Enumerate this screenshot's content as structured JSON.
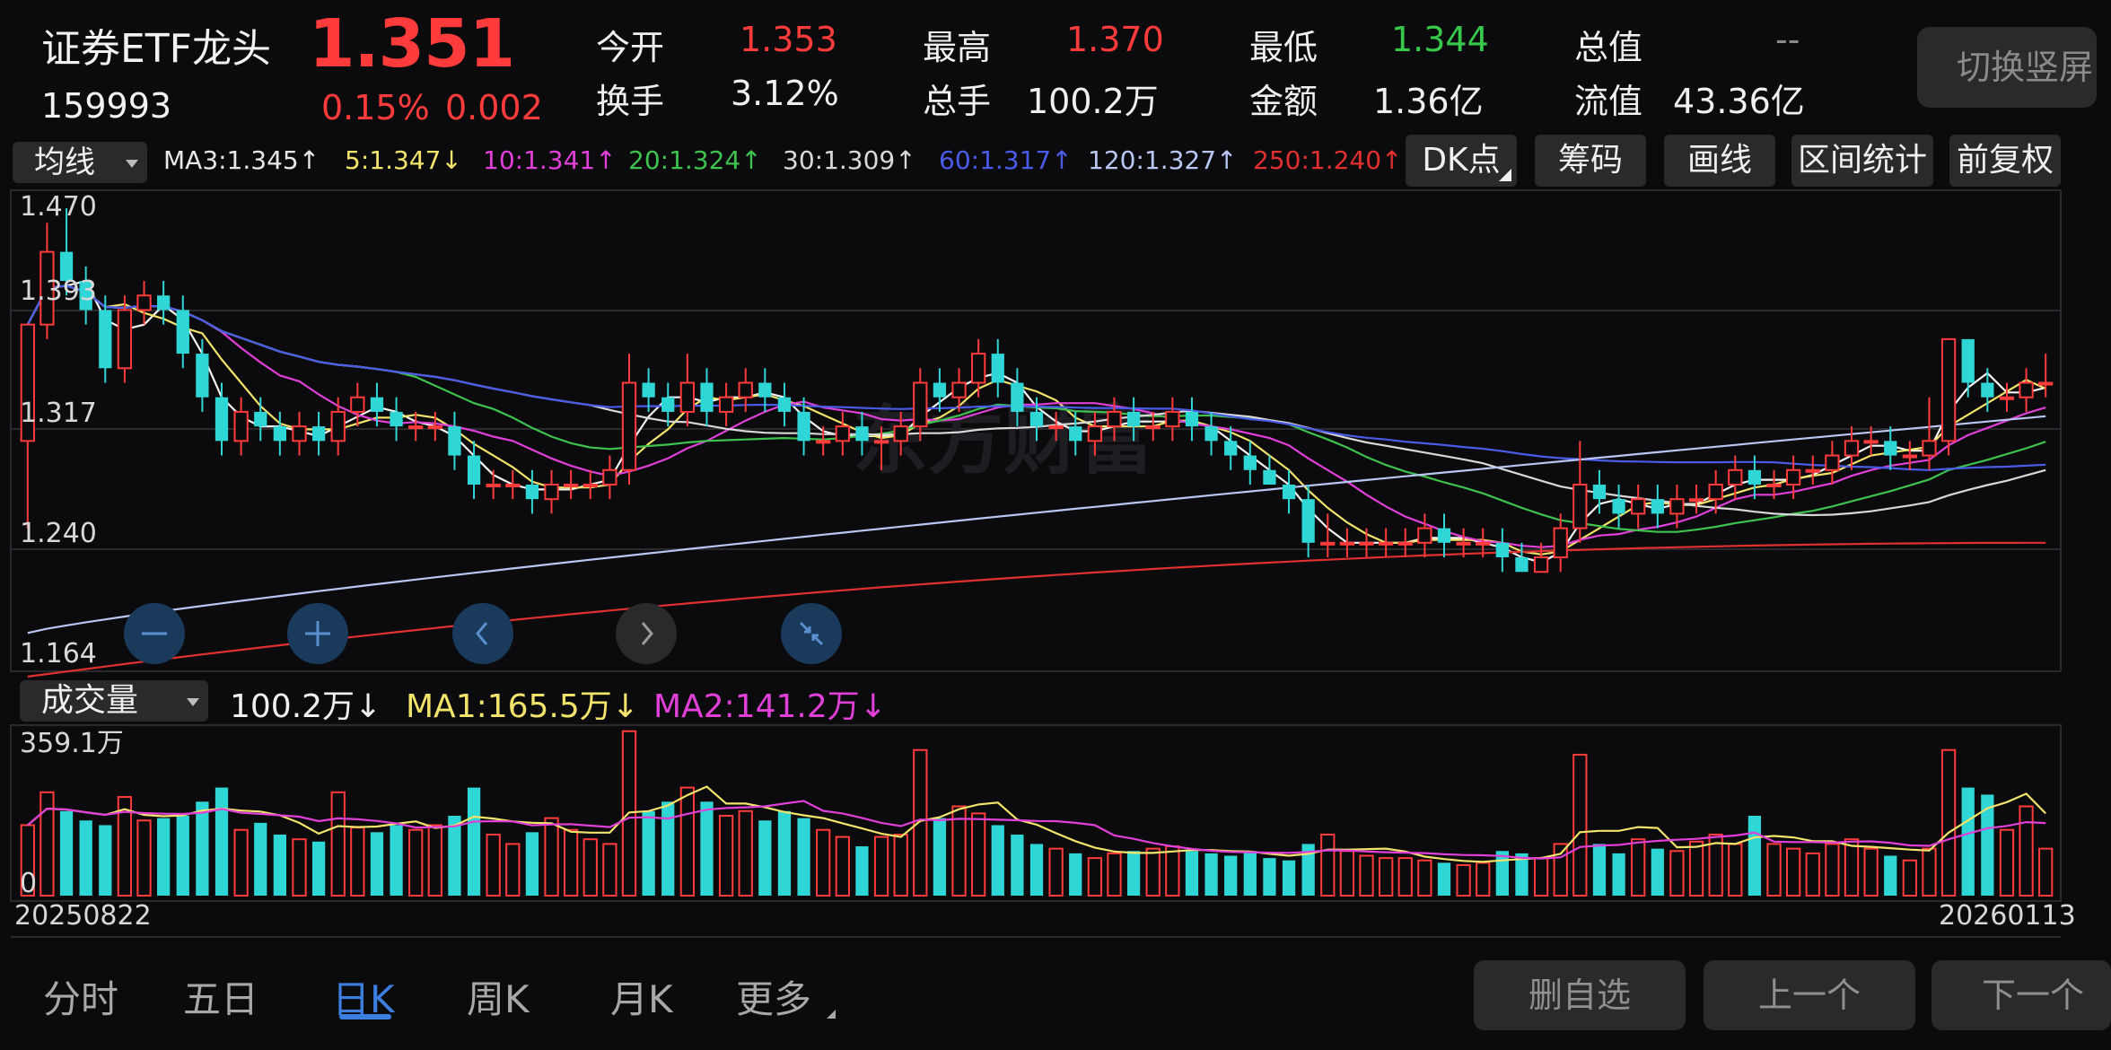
{
  "header": {
    "name": "证券ETF龙头",
    "price": "1.351",
    "code": "159993",
    "change_pct": "0.15%",
    "change_abs": "0.002",
    "stats": [
      {
        "label": "今开",
        "value": "1.353",
        "color": "red"
      },
      {
        "label": "最高",
        "value": "1.370",
        "color": "red"
      },
      {
        "label": "最低",
        "value": "1.344",
        "color": "green"
      },
      {
        "label": "总值",
        "value": "--",
        "color": "gray"
      },
      {
        "label": "换手",
        "value": "3.12%",
        "color": "white"
      },
      {
        "label": "总手",
        "value": "100.2万",
        "color": "white"
      },
      {
        "label": "金额",
        "value": "1.36亿",
        "color": "white"
      },
      {
        "label": "流值",
        "value": "43.36亿",
        "color": "white"
      }
    ],
    "switch_label": "切换竖屏"
  },
  "indicator_bar": {
    "selector_label": "均线",
    "ma_items": [
      {
        "text": "MA3:1.345↑",
        "color": "#e8e8e8"
      },
      {
        "text": "5:1.347↓",
        "color": "#f2e36b"
      },
      {
        "text": "10:1.341↑",
        "color": "#e040d8"
      },
      {
        "text": "20:1.324↑",
        "color": "#3ec24e"
      },
      {
        "text": "30:1.309↑",
        "color": "#d8d8d8"
      },
      {
        "text": "60:1.317↑",
        "color": "#4a5be8"
      },
      {
        "text": "120:1.327↑",
        "color": "#b9c6f2"
      },
      {
        "text": "250:1.240↑",
        "color": "#e03030"
      }
    ],
    "tools": [
      "DK点",
      "筹码",
      "画线",
      "区间统计",
      "前复权"
    ]
  },
  "price_axis": [
    "1.470",
    "1.393",
    "1.317",
    "1.240",
    "1.164"
  ],
  "volume_bar": {
    "selector_label": "成交量",
    "items": [
      {
        "text": "100.2万↓",
        "color": "#f0f0f0"
      },
      {
        "text": "MA1:165.5万↓",
        "color": "#f2e36b"
      },
      {
        "text": "MA2:141.2万↓",
        "color": "#e040d8"
      }
    ]
  },
  "volume_axis": {
    "top": "359.1万",
    "bottom": "0"
  },
  "date_axis": {
    "start": "20250822",
    "end": "20260113"
  },
  "nav_tabs": [
    {
      "label": "分时",
      "active": false
    },
    {
      "label": "五日",
      "active": false
    },
    {
      "label": "日K",
      "active": true
    },
    {
      "label": "周K",
      "active": false
    },
    {
      "label": "月K",
      "active": false
    },
    {
      "label": "更多",
      "active": false
    }
  ],
  "bottom_buttons": [
    "删自选",
    "上一个",
    "下一个"
  ],
  "chart_data": {
    "type": "candlestick",
    "ylim": [
      1.164,
      1.47
    ],
    "volume_ylim": [
      0,
      359.1
    ],
    "volume_unit": "万",
    "up_color": "#ff3b3b",
    "down_color": "#2fd6d6",
    "candles": [
      [
        1.31,
        1.39,
        1.25,
        1.39,
        150
      ],
      [
        1.39,
        1.44,
        1.38,
        1.46,
        220
      ],
      [
        1.44,
        1.42,
        1.41,
        1.47,
        180
      ],
      [
        1.42,
        1.4,
        1.39,
        1.43,
        160
      ],
      [
        1.4,
        1.36,
        1.35,
        1.41,
        150
      ],
      [
        1.36,
        1.4,
        1.35,
        1.41,
        210
      ],
      [
        1.4,
        1.41,
        1.39,
        1.42,
        160
      ],
      [
        1.41,
        1.4,
        1.39,
        1.42,
        165
      ],
      [
        1.4,
        1.37,
        1.36,
        1.41,
        170
      ],
      [
        1.37,
        1.34,
        1.33,
        1.38,
        200
      ],
      [
        1.34,
        1.31,
        1.3,
        1.35,
        230
      ],
      [
        1.31,
        1.33,
        1.3,
        1.34,
        140
      ],
      [
        1.33,
        1.32,
        1.31,
        1.34,
        155
      ],
      [
        1.32,
        1.31,
        1.3,
        1.33,
        130
      ],
      [
        1.31,
        1.32,
        1.3,
        1.33,
        120
      ],
      [
        1.32,
        1.31,
        1.3,
        1.33,
        115
      ],
      [
        1.31,
        1.33,
        1.3,
        1.34,
        220
      ],
      [
        1.33,
        1.34,
        1.32,
        1.35,
        145
      ],
      [
        1.34,
        1.33,
        1.32,
        1.35,
        135
      ],
      [
        1.33,
        1.32,
        1.31,
        1.34,
        150
      ],
      [
        1.32,
        1.32,
        1.31,
        1.33,
        140
      ],
      [
        1.32,
        1.32,
        1.31,
        1.33,
        150
      ],
      [
        1.32,
        1.3,
        1.29,
        1.33,
        170
      ],
      [
        1.3,
        1.28,
        1.27,
        1.31,
        230
      ],
      [
        1.28,
        1.28,
        1.27,
        1.29,
        130
      ],
      [
        1.28,
        1.28,
        1.27,
        1.29,
        110
      ],
      [
        1.28,
        1.27,
        1.26,
        1.29,
        135
      ],
      [
        1.27,
        1.28,
        1.26,
        1.29,
        165
      ],
      [
        1.28,
        1.28,
        1.27,
        1.29,
        140
      ],
      [
        1.28,
        1.28,
        1.27,
        1.29,
        120
      ],
      [
        1.28,
        1.29,
        1.27,
        1.3,
        110
      ],
      [
        1.29,
        1.35,
        1.28,
        1.37,
        350
      ],
      [
        1.35,
        1.34,
        1.33,
        1.36,
        180
      ],
      [
        1.34,
        1.33,
        1.32,
        1.35,
        200
      ],
      [
        1.33,
        1.35,
        1.32,
        1.37,
        230
      ],
      [
        1.35,
        1.33,
        1.32,
        1.36,
        200
      ],
      [
        1.33,
        1.34,
        1.32,
        1.35,
        170
      ],
      [
        1.34,
        1.35,
        1.33,
        1.36,
        180
      ],
      [
        1.35,
        1.34,
        1.33,
        1.36,
        160
      ],
      [
        1.34,
        1.33,
        1.32,
        1.35,
        180
      ],
      [
        1.33,
        1.31,
        1.3,
        1.34,
        165
      ],
      [
        1.31,
        1.31,
        1.3,
        1.32,
        140
      ],
      [
        1.31,
        1.32,
        1.3,
        1.33,
        125
      ],
      [
        1.32,
        1.31,
        1.3,
        1.33,
        105
      ],
      [
        1.31,
        1.31,
        1.29,
        1.32,
        125
      ],
      [
        1.31,
        1.32,
        1.3,
        1.33,
        130
      ],
      [
        1.32,
        1.35,
        1.31,
        1.36,
        310
      ],
      [
        1.35,
        1.34,
        1.33,
        1.36,
        165
      ],
      [
        1.34,
        1.35,
        1.33,
        1.36,
        190
      ],
      [
        1.35,
        1.37,
        1.34,
        1.38,
        175
      ],
      [
        1.37,
        1.35,
        1.34,
        1.38,
        150
      ],
      [
        1.35,
        1.33,
        1.32,
        1.36,
        130
      ],
      [
        1.33,
        1.32,
        1.31,
        1.34,
        110
      ],
      [
        1.32,
        1.32,
        1.31,
        1.33,
        100
      ],
      [
        1.32,
        1.31,
        1.3,
        1.33,
        90
      ],
      [
        1.31,
        1.32,
        1.3,
        1.33,
        80
      ],
      [
        1.32,
        1.33,
        1.31,
        1.34,
        90
      ],
      [
        1.33,
        1.32,
        1.31,
        1.34,
        95
      ],
      [
        1.32,
        1.32,
        1.31,
        1.33,
        100
      ],
      [
        1.32,
        1.33,
        1.31,
        1.34,
        105
      ],
      [
        1.33,
        1.32,
        1.31,
        1.34,
        95
      ],
      [
        1.32,
        1.31,
        1.3,
        1.33,
        90
      ],
      [
        1.31,
        1.3,
        1.29,
        1.32,
        85
      ],
      [
        1.3,
        1.29,
        1.28,
        1.31,
        95
      ],
      [
        1.29,
        1.28,
        1.28,
        1.3,
        80
      ],
      [
        1.28,
        1.27,
        1.26,
        1.29,
        75
      ],
      [
        1.27,
        1.24,
        1.23,
        1.28,
        110
      ],
      [
        1.24,
        1.24,
        1.23,
        1.26,
        130
      ],
      [
        1.24,
        1.24,
        1.23,
        1.25,
        95
      ],
      [
        1.24,
        1.24,
        1.23,
        1.25,
        85
      ],
      [
        1.24,
        1.24,
        1.23,
        1.25,
        80
      ],
      [
        1.24,
        1.24,
        1.23,
        1.25,
        80
      ],
      [
        1.24,
        1.25,
        1.23,
        1.26,
        75
      ],
      [
        1.25,
        1.24,
        1.23,
        1.26,
        70
      ],
      [
        1.24,
        1.24,
        1.23,
        1.25,
        65
      ],
      [
        1.24,
        1.24,
        1.23,
        1.25,
        70
      ],
      [
        1.24,
        1.23,
        1.22,
        1.25,
        95
      ],
      [
        1.23,
        1.22,
        1.22,
        1.24,
        90
      ],
      [
        1.22,
        1.23,
        1.22,
        1.24,
        80
      ],
      [
        1.23,
        1.25,
        1.22,
        1.26,
        110
      ],
      [
        1.25,
        1.28,
        1.24,
        1.31,
        300
      ],
      [
        1.28,
        1.27,
        1.26,
        1.29,
        110
      ],
      [
        1.27,
        1.26,
        1.25,
        1.28,
        90
      ],
      [
        1.26,
        1.27,
        1.25,
        1.28,
        120
      ],
      [
        1.27,
        1.26,
        1.25,
        1.28,
        100
      ],
      [
        1.26,
        1.27,
        1.25,
        1.28,
        95
      ],
      [
        1.27,
        1.27,
        1.26,
        1.28,
        115
      ],
      [
        1.27,
        1.28,
        1.26,
        1.29,
        130
      ],
      [
        1.28,
        1.29,
        1.27,
        1.3,
        110
      ],
      [
        1.29,
        1.28,
        1.27,
        1.3,
        170
      ],
      [
        1.28,
        1.28,
        1.27,
        1.29,
        110
      ],
      [
        1.28,
        1.29,
        1.27,
        1.3,
        100
      ],
      [
        1.29,
        1.29,
        1.28,
        1.3,
        90
      ],
      [
        1.29,
        1.3,
        1.28,
        1.31,
        110
      ],
      [
        1.3,
        1.31,
        1.29,
        1.32,
        120
      ],
      [
        1.31,
        1.31,
        1.3,
        1.32,
        100
      ],
      [
        1.31,
        1.3,
        1.29,
        1.32,
        85
      ],
      [
        1.3,
        1.3,
        1.29,
        1.31,
        75
      ],
      [
        1.3,
        1.31,
        1.29,
        1.34,
        100
      ],
      [
        1.31,
        1.38,
        1.3,
        1.38,
        310
      ],
      [
        1.38,
        1.35,
        1.34,
        1.38,
        230
      ],
      [
        1.35,
        1.34,
        1.33,
        1.36,
        215
      ],
      [
        1.34,
        1.34,
        1.33,
        1.35,
        140
      ],
      [
        1.34,
        1.35,
        1.33,
        1.36,
        190
      ],
      [
        1.35,
        1.35,
        1.34,
        1.37,
        100
      ]
    ]
  }
}
